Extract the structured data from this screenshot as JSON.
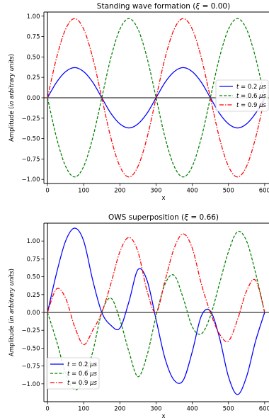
{
  "chart_data": [
    {
      "type": "line",
      "title": "Standing wave formation (ξ = 0.00)",
      "xlabel": "x",
      "ylabel": "Amplitude (in arbitrary units)",
      "xlim": [
        -10,
        612
      ],
      "ylim": [
        -1.05,
        1.05
      ],
      "xticks": [
        "0",
        "100",
        "200",
        "300",
        "400",
        "500",
        "600"
      ],
      "yticks": [
        "−1.00",
        "−0.75",
        "−0.50",
        "−0.25",
        "0.00",
        "0.25",
        "0.50",
        "0.75",
        "1.00"
      ],
      "legend_position": "right",
      "x": [
        0,
        25,
        50,
        75,
        100,
        125,
        150,
        175,
        200,
        225,
        250,
        275,
        300,
        325,
        350,
        375,
        400,
        425,
        450,
        475,
        500,
        525,
        550,
        575,
        600
      ],
      "series": [
        {
          "name": "t = 0.2 μs",
          "color": "#0000ff",
          "style": "solid",
          "values": [
            0,
            0.19,
            0.32,
            0.37,
            0.32,
            0.19,
            0,
            -0.19,
            -0.32,
            -0.37,
            -0.32,
            -0.19,
            0,
            0.19,
            0.32,
            0.37,
            0.32,
            0.19,
            0,
            -0.19,
            -0.32,
            -0.37,
            -0.32,
            -0.19,
            0
          ]
        },
        {
          "name": "t = 0.6 μs",
          "color": "#008000",
          "style": "dashed",
          "values": [
            0,
            -0.49,
            -0.84,
            -0.97,
            -0.84,
            -0.49,
            0,
            0.49,
            0.84,
            0.97,
            0.84,
            0.49,
            0,
            -0.49,
            -0.84,
            -0.97,
            -0.84,
            -0.49,
            0,
            0.49,
            0.84,
            0.97,
            0.84,
            0.49,
            0
          ]
        },
        {
          "name": "t = 0.9 μs",
          "color": "#ff0000",
          "style": "dashdot",
          "values": [
            0,
            0.49,
            0.84,
            0.97,
            0.84,
            0.49,
            0,
            -0.49,
            -0.84,
            -0.97,
            -0.84,
            -0.49,
            0,
            0.49,
            0.84,
            0.97,
            0.84,
            0.49,
            0,
            -0.49,
            -0.84,
            -0.97,
            -0.84,
            -0.49,
            0
          ]
        }
      ]
    },
    {
      "type": "line",
      "title": "OWS superposition (ξ = 0.66)",
      "xlabel": "x",
      "ylabel": "Amplitude (in arbitrary units)",
      "xlim": [
        -10,
        612
      ],
      "ylim": [
        -1.25,
        1.25
      ],
      "xticks": [
        "0",
        "100",
        "200",
        "300",
        "400",
        "500",
        "600"
      ],
      "yticks": [
        "−1.00",
        "−0.75",
        "−0.50",
        "−0.25",
        "0.00",
        "0.25",
        "0.50",
        "0.75",
        "1.00"
      ],
      "legend_position": "lower-left",
      "x": [
        0,
        25,
        50,
        75,
        100,
        125,
        150,
        175,
        200,
        225,
        250,
        275,
        300,
        325,
        350,
        375,
        400,
        425,
        450,
        475,
        500,
        525,
        550,
        575,
        600
      ],
      "series": [
        {
          "name": "t = 0.2 μs",
          "color": "#0000ff",
          "style": "solid",
          "values": [
            0,
            0.55,
            1.0,
            1.18,
            1.0,
            0.45,
            0.0,
            -0.18,
            -0.22,
            0.15,
            0.6,
            0.45,
            -0.1,
            -0.65,
            -0.95,
            -0.95,
            -0.55,
            -0.05,
            0.02,
            -0.35,
            -0.9,
            -1.15,
            -0.9,
            -0.4,
            0
          ]
        },
        {
          "name": "t = 0.6 μs",
          "color": "#008000",
          "style": "dashed",
          "values": [
            0,
            -0.4,
            -0.85,
            -1.08,
            -0.95,
            -0.55,
            0.0,
            0.2,
            -0.1,
            -0.55,
            -0.9,
            -0.6,
            -0.05,
            0.4,
            0.52,
            0.2,
            -0.2,
            -0.3,
            -0.05,
            0.4,
            0.85,
            1.13,
            1.0,
            0.55,
            0
          ]
        },
        {
          "name": "t = 0.9 μs",
          "color": "#ff0000",
          "style": "dashdot",
          "values": [
            0,
            0.33,
            0.2,
            -0.2,
            -0.45,
            -0.25,
            0.0,
            0.4,
            0.85,
            1.05,
            0.85,
            0.3,
            0.0,
            0.45,
            0.9,
            1.1,
            0.9,
            0.4,
            0.0,
            -0.3,
            -0.4,
            -0.1,
            0.3,
            0.45,
            0
          ]
        }
      ]
    }
  ]
}
